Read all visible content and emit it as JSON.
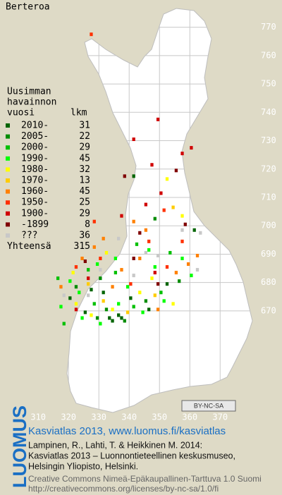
{
  "title": "Berteroa",
  "legend": {
    "heading": [
      "Uusimman",
      "havainnon",
      "vuosi"
    ],
    "count_heading": "lkm",
    "entries": [
      {
        "label": "2010-",
        "count": 31,
        "color": "#006400",
        "points": [
          [
            333.5,
            667.5
          ],
          [
            336.5,
            668.5
          ],
          [
            337.5,
            667.5
          ],
          [
            331.5,
            676.5
          ],
          [
            327.5,
            677.5
          ],
          [
            340.5,
            674.5
          ],
          [
            352.5,
            679.5
          ],
          [
            325.5,
            669.5
          ],
          [
            334.5,
            666.5
          ],
          [
            320.5,
            674.5
          ],
          [
            346.5,
            670.5
          ],
          [
            361.5,
            698.5
          ],
          [
            341.5,
            717.5
          ]
        ]
      },
      {
        "label": "2005-",
        "count": 22,
        "color": "#008c00",
        "points": [
          [
            332.5,
            670.5
          ],
          [
            338.5,
            666.5
          ],
          [
            330.5,
            681.5
          ],
          [
            322.5,
            678.5
          ],
          [
            345.5,
            673.5
          ],
          [
            356.5,
            680.5
          ],
          [
            329.5,
            667.5
          ],
          [
            348.5,
            702.5
          ]
        ]
      },
      {
        "label": "2000-",
        "count": 29,
        "color": "#00c000",
        "points": [
          [
            328.5,
            672.5
          ],
          [
            341.5,
            671.5
          ],
          [
            318.5,
            665.5
          ],
          [
            335.5,
            683.5
          ],
          [
            350.5,
            676.5
          ],
          [
            353.5,
            690.5
          ],
          [
            326.5,
            684.5
          ],
          [
            316.5,
            681.5
          ],
          [
            342.5,
            693.5
          ]
        ]
      },
      {
        "label": "1990-",
        "count": 45,
        "color": "#00ff00",
        "points": [
          [
            330.5,
            665.5
          ],
          [
            336.5,
            672.5
          ],
          [
            344.5,
            669.5
          ],
          [
            320.5,
            680.5
          ],
          [
            329.5,
            686.5
          ],
          [
            351.5,
            673.5
          ],
          [
            357.5,
            688.5
          ],
          [
            339.5,
            678.5
          ],
          [
            323.5,
            676.5
          ],
          [
            324.5,
            667.5
          ],
          [
            360.5,
            682.5
          ],
          [
            317.5,
            671.5
          ],
          [
            335.5,
            688.5
          ],
          [
            348.5,
            685.5
          ],
          [
            346.5,
            691.5
          ]
        ]
      },
      {
        "label": "1980-",
        "count": 32,
        "color": "#ffff00",
        "points": [
          [
            327.5,
            668.5
          ],
          [
            334.5,
            670.5
          ],
          [
            321.5,
            683.5
          ],
          [
            343.5,
            676.5
          ],
          [
            332.5,
            690.5
          ],
          [
            354.5,
            672.5
          ],
          [
            347.5,
            681.5
          ],
          [
            322.5,
            672.5
          ],
          [
            357.5,
            703.5
          ],
          [
            352.5,
            716.5
          ]
        ]
      },
      {
        "label": "1970-",
        "count": 13,
        "color": "#ffcc00",
        "points": [
          [
            331.5,
            673.5
          ],
          [
            339.5,
            669.5
          ],
          [
            348.5,
            675.5
          ],
          [
            326.5,
            679.5
          ],
          [
            354.5,
            706.5
          ]
        ]
      },
      {
        "label": "1960-",
        "count": 45,
        "color": "#ff8000",
        "points": [
          [
            317.5,
            678.5
          ],
          [
            324.5,
            688.5
          ],
          [
            337.5,
            684.5
          ],
          [
            349.5,
            670.5
          ],
          [
            355.5,
            683.5
          ],
          [
            343.5,
            688.5
          ],
          [
            362.5,
            689.5
          ],
          [
            331.5,
            695.5
          ],
          [
            328.5,
            692.5
          ],
          [
            345.5,
            698.5
          ],
          [
            341.5,
            701.5
          ],
          [
            359.5,
            686.5
          ],
          [
            334.5,
            678.5
          ]
        ]
      },
      {
        "label": "1950-",
        "count": 25,
        "color": "#ff3000",
        "points": [
          [
            322.5,
            685.5
          ],
          [
            340.5,
            679.5
          ],
          [
            352.5,
            685.5
          ],
          [
            330.5,
            688.5
          ],
          [
            346.5,
            694.5
          ],
          [
            357.5,
            694.5
          ],
          [
            328.5,
            701.5
          ],
          [
            351.5,
            705.5
          ],
          [
            327.5,
            767.5
          ]
        ]
      },
      {
        "label": "1900-",
        "count": 29,
        "color": "#d00000",
        "points": [
          [
            349.5,
            737.5
          ],
          [
            341.5,
            730.5
          ],
          [
            347.5,
            721.5
          ],
          [
            360.5,
            727.5
          ],
          [
            326.5,
            681.5
          ],
          [
            337.5,
            703.5
          ],
          [
            345.5,
            707.5
          ],
          [
            350.5,
            711.5
          ],
          [
            357.5,
            725.5
          ],
          [
            348.5,
            683.5
          ],
          [
            322.5,
            670.5
          ]
        ]
      },
      {
        "label": "-1899",
        "count": 8,
        "color": "#800000",
        "points": [
          [
            338.5,
            717.5
          ],
          [
            355.5,
            719.5
          ],
          [
            325.5,
            687.5
          ],
          [
            341.5,
            688.5
          ],
          [
            349.5,
            679.5
          ],
          [
            343.5,
            697.5
          ],
          [
            358.5,
            700.5
          ]
        ]
      },
      {
        "label": "???",
        "count": 36,
        "color": "#c8c8c8",
        "points": [
          [
            318.5,
            675.5
          ],
          [
            341.5,
            682.5
          ],
          [
            349.5,
            689.5
          ],
          [
            330.5,
            684.5
          ],
          [
            357.5,
            698.5
          ],
          [
            363.5,
            697.5
          ],
          [
            326.5,
            675.5
          ],
          [
            336.5,
            695.5
          ],
          [
            362.5,
            684.5
          ],
          [
            345.5,
            690.5
          ]
        ]
      }
    ],
    "total_label": "Yhteensä",
    "total": 315
  },
  "grid": {
    "xlim": [
      297.4,
      390.4
    ],
    "ylim": [
      605.1,
      779.6
    ],
    "xticks": [
      310,
      320,
      330,
      340,
      350,
      360,
      370
    ],
    "yticks": [
      770,
      760,
      750,
      740,
      730,
      720,
      710,
      700,
      690,
      680,
      670
    ]
  },
  "cc_badge": "BY-NC-SA",
  "footer": {
    "logo": "LUOMUS",
    "headline": "Kasviatlas 2013, www.luomus.fi/kasviatlas",
    "citation": [
      "Lampinen, R., Lahti, T. & Heikkinen M. 2014:",
      "Kasviatlas 2013 – Luonnontieteellinen keskusmuseo,",
      "Helsingin Yliopisto, Helsinki."
    ],
    "license": [
      "Creative Commons Nimeä-Epäkaupallinen-Tarttuva 1.0 Suomi",
      "http://creativecommons.org/licenses/by-nc-sa/1.0/fi"
    ]
  }
}
